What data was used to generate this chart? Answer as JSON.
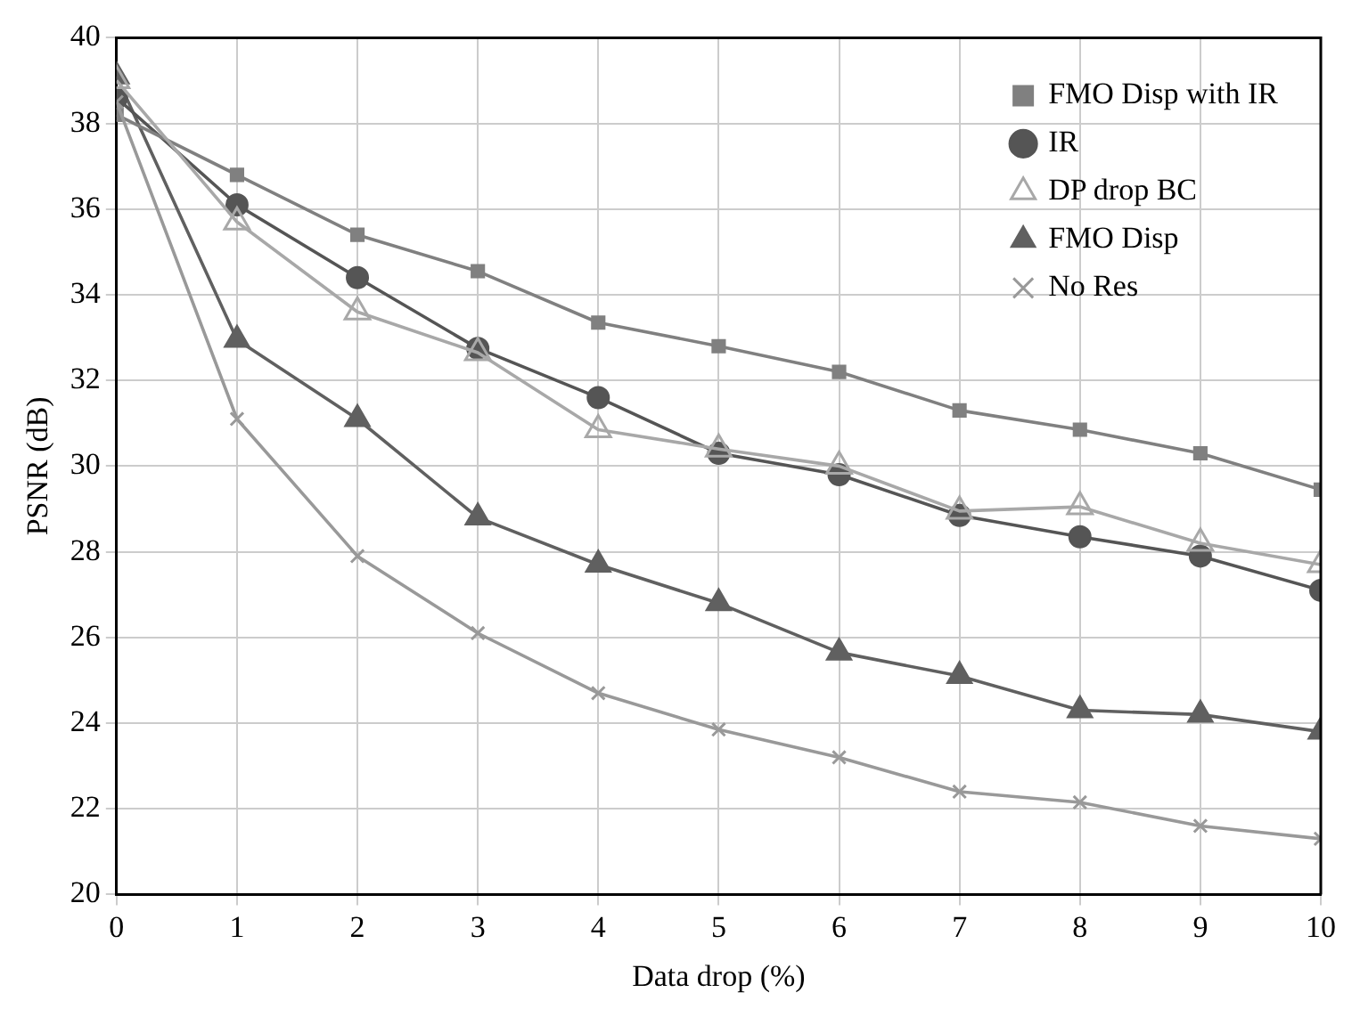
{
  "chart_data": {
    "type": "line",
    "xlabel": "Data drop (%)",
    "ylabel": "PSNR (dB)",
    "x": [
      0,
      1,
      2,
      3,
      4,
      5,
      6,
      7,
      8,
      9,
      10
    ],
    "series": [
      {
        "name": "FMO Disp with IR",
        "color": "#808080",
        "marker": "square",
        "values": [
          38.2,
          36.8,
          35.4,
          34.55,
          33.35,
          32.8,
          32.2,
          31.3,
          30.85,
          30.3,
          29.45
        ]
      },
      {
        "name": "IR",
        "color": "#555555",
        "marker": "circle",
        "values": [
          38.6,
          36.1,
          34.4,
          32.75,
          31.6,
          30.3,
          29.8,
          28.85,
          28.35,
          27.9,
          27.1
        ]
      },
      {
        "name": "DP drop BC",
        "color": "#a8a8a8",
        "marker": "triangle-open",
        "values": [
          39.0,
          35.7,
          33.6,
          32.65,
          30.85,
          30.4,
          30.0,
          28.95,
          29.05,
          28.2,
          27.7
        ]
      },
      {
        "name": "FMO Disp",
        "color": "#606060",
        "marker": "triangle",
        "values": [
          39.1,
          32.95,
          31.1,
          28.8,
          27.7,
          26.8,
          25.65,
          25.1,
          24.3,
          24.2,
          23.8
        ]
      },
      {
        "name": "No Res",
        "color": "#999999",
        "marker": "cross",
        "values": [
          38.5,
          31.1,
          27.9,
          26.1,
          24.7,
          23.85,
          23.2,
          22.4,
          22.15,
          21.6,
          21.3
        ]
      }
    ],
    "xlim": [
      0,
      10
    ],
    "xticks": [
      0,
      1,
      2,
      3,
      4,
      5,
      6,
      7,
      8,
      9,
      10
    ],
    "ylim": [
      20,
      40
    ],
    "yticks": [
      20,
      22,
      24,
      26,
      28,
      30,
      32,
      34,
      36,
      38,
      40
    ],
    "grid": true,
    "legend": "top right",
    "line_style": "solid"
  }
}
